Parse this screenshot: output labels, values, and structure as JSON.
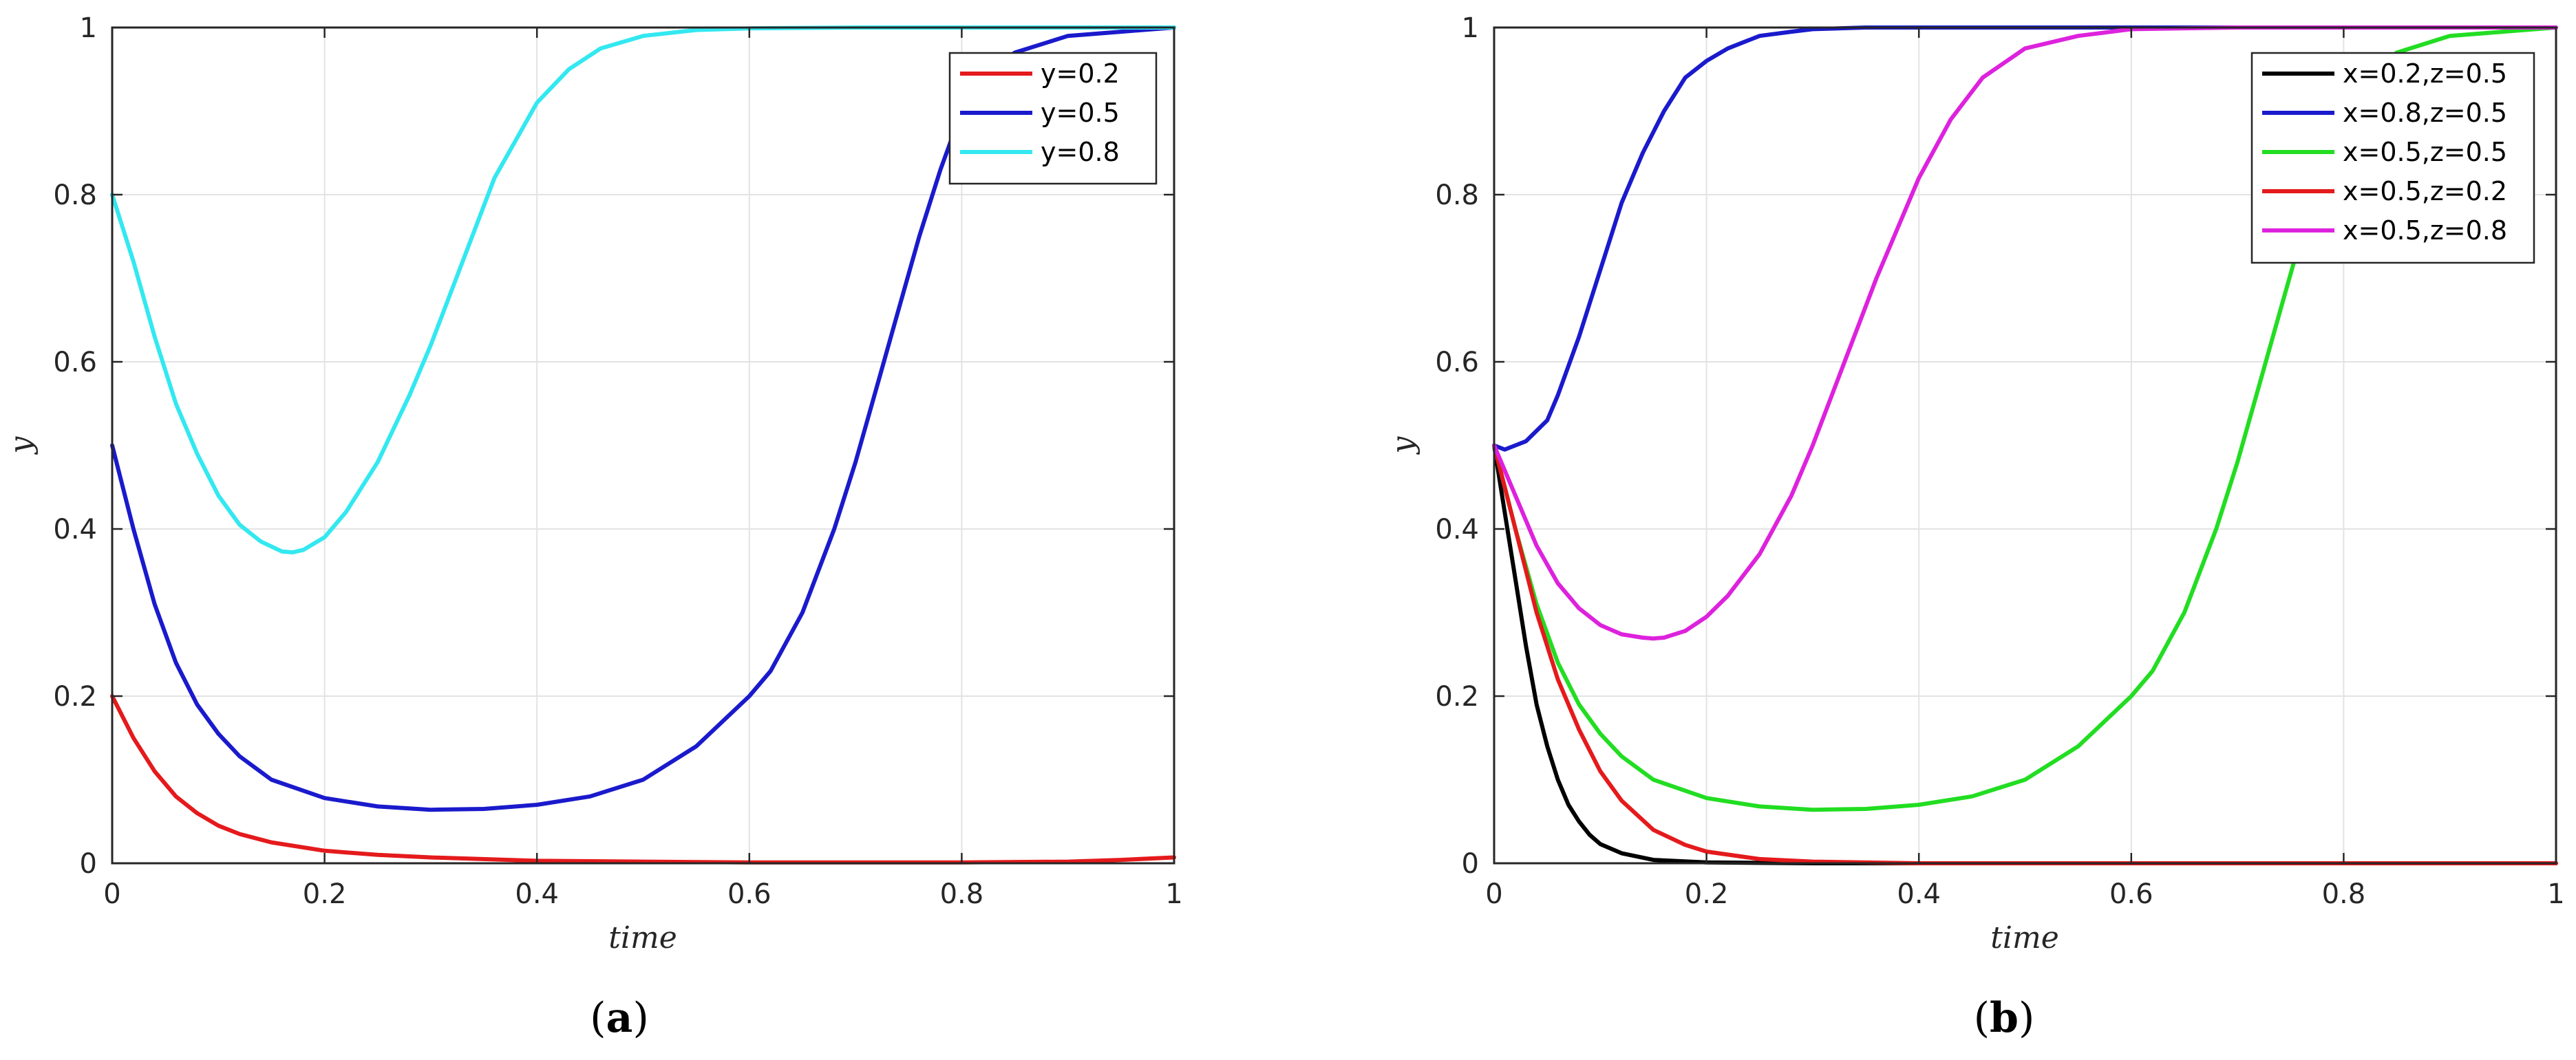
{
  "chart_data": [
    {
      "type": "line",
      "caption": "(a)",
      "caption_letter": "a",
      "xlabel": "time",
      "ylabel": "y",
      "xlim": [
        0,
        1
      ],
      "ylim": [
        0,
        1
      ],
      "xticks": [
        "0",
        "0.2",
        "0.4",
        "0.6",
        "0.8",
        "1"
      ],
      "yticks": [
        "0",
        "0.2",
        "0.4",
        "0.6",
        "0.8",
        "1"
      ],
      "grid": true,
      "legend_position": "top-right",
      "series": [
        {
          "name": "y=0.2",
          "color": "#e41a1c",
          "x": [
            0,
            0.02,
            0.04,
            0.06,
            0.08,
            0.1,
            0.12,
            0.15,
            0.2,
            0.25,
            0.3,
            0.4,
            0.5,
            0.6,
            0.7,
            0.8,
            0.9,
            0.95,
            1.0
          ],
          "y": [
            0.2,
            0.15,
            0.11,
            0.08,
            0.06,
            0.045,
            0.035,
            0.025,
            0.015,
            0.01,
            0.007,
            0.003,
            0.002,
            0.001,
            0.001,
            0.001,
            0.002,
            0.004,
            0.007
          ]
        },
        {
          "name": "y=0.5",
          "color": "#1a1acc",
          "x": [
            0,
            0.02,
            0.04,
            0.06,
            0.08,
            0.1,
            0.12,
            0.15,
            0.2,
            0.25,
            0.3,
            0.35,
            0.4,
            0.45,
            0.5,
            0.55,
            0.6,
            0.62,
            0.65,
            0.68,
            0.7,
            0.72,
            0.74,
            0.76,
            0.78,
            0.8,
            0.82,
            0.85,
            0.9,
            0.95,
            1.0
          ],
          "y": [
            0.5,
            0.4,
            0.31,
            0.24,
            0.19,
            0.155,
            0.128,
            0.1,
            0.078,
            0.068,
            0.064,
            0.065,
            0.07,
            0.08,
            0.1,
            0.14,
            0.2,
            0.23,
            0.3,
            0.4,
            0.48,
            0.57,
            0.66,
            0.75,
            0.83,
            0.9,
            0.94,
            0.97,
            0.99,
            0.995,
            1.0
          ]
        },
        {
          "name": "y=0.8",
          "color": "#33e8f0",
          "x": [
            0,
            0.02,
            0.04,
            0.06,
            0.08,
            0.1,
            0.12,
            0.14,
            0.16,
            0.17,
            0.18,
            0.2,
            0.22,
            0.25,
            0.28,
            0.3,
            0.33,
            0.36,
            0.4,
            0.43,
            0.46,
            0.5,
            0.55,
            0.6,
            0.7,
            0.8,
            1.0
          ],
          "y": [
            0.8,
            0.72,
            0.63,
            0.55,
            0.49,
            0.44,
            0.405,
            0.385,
            0.373,
            0.372,
            0.375,
            0.39,
            0.42,
            0.48,
            0.56,
            0.62,
            0.72,
            0.82,
            0.91,
            0.95,
            0.975,
            0.99,
            0.997,
            0.999,
            1.0,
            1.0,
            1.0
          ]
        }
      ]
    },
    {
      "type": "line",
      "caption": "(b)",
      "caption_letter": "b",
      "xlabel": "time",
      "ylabel": "y",
      "xlim": [
        0,
        1
      ],
      "ylim": [
        0,
        1
      ],
      "xticks": [
        "0",
        "0.2",
        "0.4",
        "0.6",
        "0.8",
        "1"
      ],
      "yticks": [
        "0",
        "0.2",
        "0.4",
        "0.6",
        "0.8",
        "1"
      ],
      "grid": true,
      "legend_position": "top-right",
      "series": [
        {
          "name": "x=0.2,z=0.5",
          "color": "#000000",
          "x": [
            0,
            0.01,
            0.02,
            0.03,
            0.04,
            0.05,
            0.06,
            0.07,
            0.08,
            0.09,
            0.1,
            0.12,
            0.15,
            0.2,
            0.3,
            0.5,
            0.7,
            1.0
          ],
          "y": [
            0.5,
            0.42,
            0.34,
            0.26,
            0.19,
            0.14,
            0.1,
            0.07,
            0.05,
            0.034,
            0.023,
            0.012,
            0.004,
            0.001,
            0,
            0,
            0,
            0
          ]
        },
        {
          "name": "x=0.8,z=0.5",
          "color": "#1a1acc",
          "x": [
            0,
            0.01,
            0.02,
            0.03,
            0.05,
            0.06,
            0.08,
            0.1,
            0.12,
            0.14,
            0.16,
            0.18,
            0.2,
            0.22,
            0.25,
            0.28,
            0.3,
            0.35,
            0.4,
            0.5,
            0.6,
            0.8,
            1.0
          ],
          "y": [
            0.5,
            0.495,
            0.5,
            0.505,
            0.53,
            0.56,
            0.63,
            0.71,
            0.79,
            0.85,
            0.9,
            0.94,
            0.96,
            0.975,
            0.99,
            0.995,
            0.998,
            1.0,
            1.0,
            1.0,
            1.0,
            1.0,
            1.0
          ]
        },
        {
          "name": "x=0.5,z=0.5",
          "color": "#22dd22",
          "x": [
            0,
            0.02,
            0.04,
            0.06,
            0.08,
            0.1,
            0.12,
            0.15,
            0.2,
            0.25,
            0.3,
            0.35,
            0.4,
            0.45,
            0.5,
            0.55,
            0.6,
            0.62,
            0.65,
            0.68,
            0.7,
            0.72,
            0.74,
            0.76,
            0.78,
            0.8,
            0.82,
            0.85,
            0.9,
            0.95,
            1.0
          ],
          "y": [
            0.5,
            0.4,
            0.31,
            0.24,
            0.19,
            0.155,
            0.128,
            0.1,
            0.078,
            0.068,
            0.064,
            0.065,
            0.07,
            0.08,
            0.1,
            0.14,
            0.2,
            0.23,
            0.3,
            0.4,
            0.48,
            0.57,
            0.66,
            0.75,
            0.83,
            0.9,
            0.94,
            0.97,
            0.99,
            0.995,
            1.0
          ]
        },
        {
          "name": "x=0.5,z=0.2",
          "color": "#e41a1c",
          "x": [
            0,
            0.02,
            0.04,
            0.06,
            0.08,
            0.1,
            0.12,
            0.15,
            0.18,
            0.2,
            0.25,
            0.3,
            0.4,
            0.6,
            0.8,
            1.0
          ],
          "y": [
            0.5,
            0.4,
            0.3,
            0.22,
            0.16,
            0.11,
            0.075,
            0.04,
            0.022,
            0.014,
            0.005,
            0.002,
            0,
            0,
            0,
            0
          ]
        },
        {
          "name": "x=0.5,z=0.8",
          "color": "#dd22dd",
          "x": [
            0,
            0.02,
            0.04,
            0.06,
            0.08,
            0.1,
            0.12,
            0.14,
            0.15,
            0.16,
            0.18,
            0.2,
            0.22,
            0.25,
            0.28,
            0.3,
            0.33,
            0.36,
            0.4,
            0.43,
            0.46,
            0.5,
            0.55,
            0.6,
            0.7,
            0.8,
            1.0
          ],
          "y": [
            0.5,
            0.44,
            0.38,
            0.335,
            0.305,
            0.285,
            0.274,
            0.27,
            0.269,
            0.27,
            0.278,
            0.295,
            0.32,
            0.37,
            0.44,
            0.5,
            0.6,
            0.7,
            0.82,
            0.89,
            0.94,
            0.975,
            0.99,
            0.998,
            1.0,
            1.0,
            1.0
          ]
        }
      ]
    }
  ]
}
